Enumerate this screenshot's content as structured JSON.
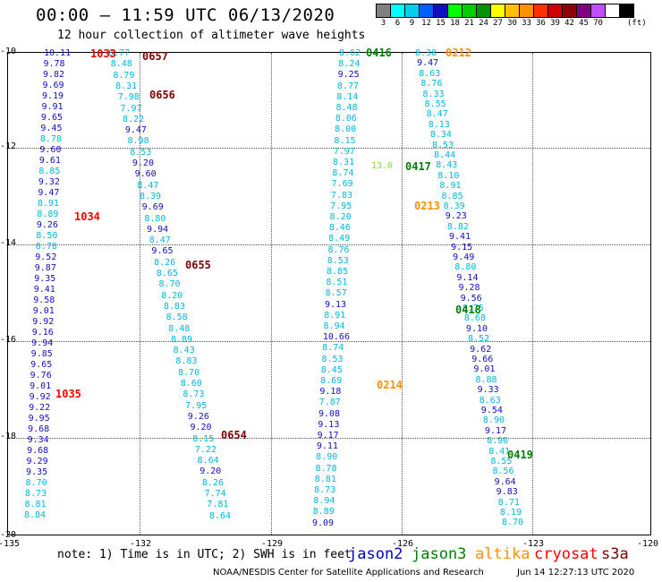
{
  "header": {
    "title": "00:00 – 11:59 UTC 06/13/2020",
    "subtitle": "12 hour collection of altimeter wave heights"
  },
  "scale": {
    "colors": [
      "#808080",
      "#00ffff",
      "#00cfe8",
      "#0060ff",
      "#1010c0",
      "#00ff00",
      "#00cc00",
      "#009000",
      "#ffff00",
      "#ffc000",
      "#ff9000",
      "#ff3000",
      "#d00000",
      "#900000",
      "#800080",
      "#c050ff",
      "#ffffff",
      "#000000"
    ],
    "labels": [
      "3",
      "6",
      "9",
      "12",
      "15",
      "18",
      "21",
      "24",
      "27",
      "30",
      "33",
      "36",
      "39",
      "42",
      "45",
      "70"
    ],
    "unit": "(ft)"
  },
  "axes": {
    "y_ticks": [
      "-10",
      "-12",
      "-14",
      "-16",
      "-18",
      "-20"
    ],
    "x_ticks": [
      "-135",
      "-132",
      "-129",
      "-126",
      "-123",
      "-120"
    ]
  },
  "tracks": [
    {
      "name": "track-a",
      "values": [
        "10.11",
        "9.78",
        "9.82",
        "9.69",
        "9.19",
        "9.91",
        "9.65",
        "9.45",
        "8.78",
        "9.60",
        "9.61",
        "8.85",
        "9.32",
        "9.47",
        "8.91",
        "8.89",
        "9.26",
        "8.50",
        "8.78",
        "9.52",
        "9.87",
        "9.35",
        "9.41",
        "9.58",
        "9.01",
        "9.92",
        "9.16",
        "9.94",
        "9.85",
        "9.65",
        "9.76",
        "9.01",
        "9.92",
        "9.22",
        "9.95",
        "9.68",
        "9.34",
        "9.68",
        "9.29",
        "9.35",
        "8.70",
        "8.73",
        "8.81",
        "8.84"
      ]
    },
    {
      "name": "track-b",
      "values": [
        "8.77",
        "8.48",
        "8.79",
        "8.31",
        "7.98",
        "7.97",
        "8.22",
        "9.47",
        "8.98",
        "8.53",
        "9.20",
        "9.60",
        "8.47",
        "8.39",
        "9.69",
        "8.80",
        "9.94",
        "8.47",
        "9.65",
        "8.26",
        "8.65",
        "8.70",
        "8.20",
        "8.83",
        "8.58",
        "8.48",
        "8.89",
        "8.43",
        "8.83",
        "8.70",
        "8.60",
        "8.73",
        "7.95",
        "9.26",
        "9.20",
        "8.15",
        "7.22",
        "8.64",
        "9.20",
        "8.26",
        "7.74",
        "7.81",
        "8.64"
      ]
    },
    {
      "name": "track-c",
      "values": [
        "8.62",
        "8.24",
        "9.25",
        "8.77",
        "8.14",
        "8.48",
        "8.06",
        "8.00",
        "8.15",
        "7.97",
        "8.31",
        "8.74",
        "7.69",
        "7.83",
        "7.95",
        "8.20",
        "8.46",
        "8.49",
        "8.76",
        "8.53",
        "8.85",
        "8.51",
        "8.57",
        "9.13",
        "8.91",
        "8.94",
        "10.66",
        "8.74",
        "8.53",
        "8.45",
        "8.69",
        "9.18",
        "7.87",
        "9.08",
        "9.13",
        "9.17",
        "9.11",
        "8.90",
        "8.78",
        "8.81",
        "8.73",
        "8.94",
        "8.89",
        "9.09"
      ]
    },
    {
      "name": "track-d",
      "values": [
        "8.38",
        "9.47",
        "8.63",
        "8.76",
        "8.33",
        "8.55",
        "8.47",
        "8.13",
        "8.34",
        "8.53",
        "8.44",
        "8.43",
        "8.10",
        "8.91",
        "8.85",
        "8.39",
        "9.23",
        "8.82",
        "9.41",
        "9.15",
        "9.49",
        "8.80",
        "9.14",
        "9.28",
        "9.56",
        "8.75",
        "8.68",
        "9.10",
        "8.52",
        "9.62",
        "9.66",
        "9.01",
        "8.88",
        "9.33",
        "8.63",
        "9.54",
        "8.90",
        "9.17",
        "8.90",
        "8.41",
        "8.55",
        "8.56",
        "9.64",
        "9.83",
        "8.71",
        "8.19",
        "8.70"
      ]
    }
  ],
  "orbits": [
    {
      "name": "1033",
      "color": "#ff0000"
    },
    {
      "name": "0657",
      "color": "#800000"
    },
    {
      "name": "0656",
      "color": "#800000"
    },
    {
      "name": "1034",
      "color": "#ff0000"
    },
    {
      "name": "0655",
      "color": "#800000"
    },
    {
      "name": "1035",
      "color": "#ff0000"
    },
    {
      "name": "0654",
      "color": "#800000"
    },
    {
      "name": "0416",
      "color": "#008000"
    },
    {
      "name": "0212",
      "color": "#ff9000"
    },
    {
      "name": "0417",
      "color": "#008000"
    },
    {
      "name": "0213",
      "color": "#ff9000"
    },
    {
      "name": "0418",
      "color": "#008000"
    },
    {
      "name": "0214",
      "color": "#ff9000"
    },
    {
      "name": "0419",
      "color": "#008000"
    }
  ],
  "highlight_value": "13.0",
  "note": "note: 1) Time is in UTC; 2) SWH is in feet",
  "legend": [
    {
      "label": "jason2",
      "color": "#0000cc"
    },
    {
      "label": "jason3",
      "color": "#008000"
    },
    {
      "label": "altika",
      "color": "#ff9000"
    },
    {
      "label": "cryosat",
      "color": "#ff0000"
    },
    {
      "label": "s3a",
      "color": "#800000"
    }
  ],
  "footer": {
    "credit": "NOAA/NESDIS Center for Satellite Applications and Research",
    "timestamp": "Jun 14 12:27:13 UTC 2020"
  }
}
